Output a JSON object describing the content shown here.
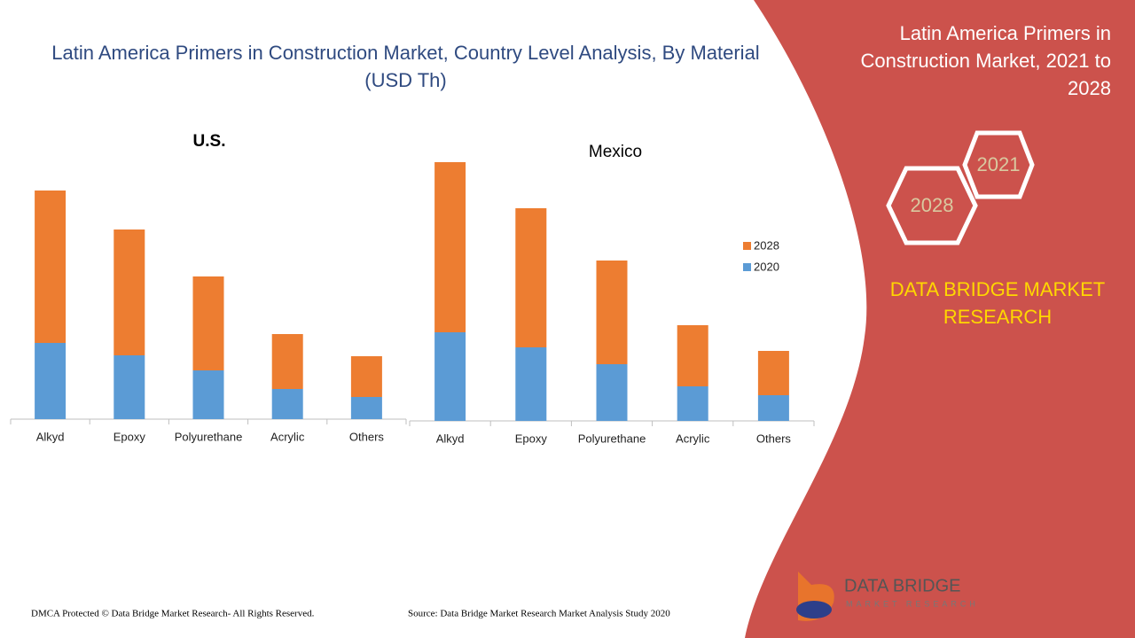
{
  "title": "Latin America Primers in Construction Market, Country Level Analysis, By Material (USD Th)",
  "chart_data": [
    {
      "type": "stacked-bar",
      "title": "U.S.",
      "categories": [
        "Alkyd",
        "Epoxy",
        "Polyurethane",
        "Acrylic",
        "Others"
      ],
      "series": [
        {
          "name": "2020",
          "color": "#5b9bd5",
          "values": [
            86,
            72,
            55,
            34,
            25
          ]
        },
        {
          "name": "2028",
          "color": "#ed7d31",
          "values": [
            172,
            142,
            106,
            62,
            46
          ]
        }
      ]
    },
    {
      "type": "stacked-bar",
      "title": "Mexico",
      "categories": [
        "Alkyd",
        "Epoxy",
        "Polyurethane",
        "Acrylic",
        "Others"
      ],
      "series": [
        {
          "name": "2020",
          "color": "#5b9bd5",
          "values": [
            100,
            83,
            64,
            39,
            29
          ]
        },
        {
          "name": "2028",
          "color": "#ed7d31",
          "values": [
            192,
            157,
            117,
            69,
            50
          ]
        }
      ],
      "legend": "right"
    }
  ],
  "sidebar": {
    "title": "Latin America Primers in Construction Market, 2021 to 2028",
    "hex_labels": [
      "2021",
      "2028"
    ],
    "brand": "DATA BRIDGE MARKET RESEARCH"
  },
  "logo": {
    "name": "DATA BRIDGE",
    "tagline": "MARKET RESEARCH"
  },
  "footer": {
    "copyright": "DMCA Protected © Data Bridge Market Research- All Rights Reserved.",
    "source": "Source: Data Bridge Market Research Market Analysis Study 2020"
  }
}
